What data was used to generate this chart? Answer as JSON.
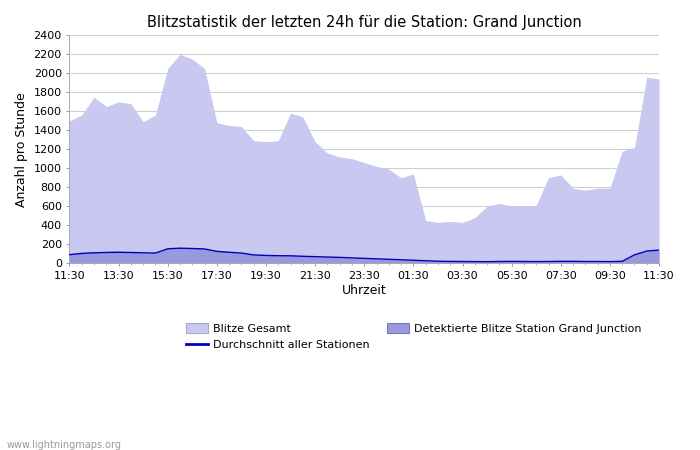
{
  "title": "Blitzstatistik der letzten 24h für die Station: Grand Junction",
  "xlabel": "Uhrzeit",
  "ylabel": "Anzahl pro Stunde",
  "ylim": [
    0,
    2400
  ],
  "yticks": [
    0,
    200,
    400,
    600,
    800,
    1000,
    1200,
    1400,
    1600,
    1800,
    2000,
    2200,
    2400
  ],
  "xtick_labels": [
    "11:30",
    "13:30",
    "15:30",
    "17:30",
    "19:30",
    "21:30",
    "23:30",
    "01:30",
    "03:30",
    "05:30",
    "07:30",
    "09:30",
    "11:30"
  ],
  "background_color": "#ffffff",
  "plot_bg_color": "#ffffff",
  "grid_color": "#cccccc",
  "footer_text": "www.lightningmaps.org",
  "color_gesamt": "#c8c8f0",
  "color_station": "#9999dd",
  "color_avg": "#0000bb",
  "gesamt": [
    1500,
    1560,
    1750,
    1650,
    1700,
    1680,
    1490,
    1560,
    2050,
    2200,
    2150,
    2050,
    1480,
    1450,
    1440,
    1290,
    1280,
    1290,
    1580,
    1540,
    1280,
    1160,
    1120,
    1100,
    1060,
    1020,
    990,
    900,
    940,
    450,
    430,
    440,
    430,
    480,
    600,
    630,
    600,
    600,
    610,
    900,
    930,
    790,
    770,
    790,
    790,
    1180,
    1220,
    1960,
    1940
  ],
  "station": [
    95,
    108,
    118,
    125,
    128,
    118,
    108,
    108,
    155,
    168,
    162,
    152,
    128,
    118,
    108,
    88,
    83,
    78,
    78,
    73,
    68,
    63,
    58,
    53,
    48,
    43,
    38,
    33,
    28,
    23,
    18,
    18,
    18,
    16,
    16,
    18,
    18,
    18,
    16,
    16,
    18,
    18,
    16,
    16,
    16,
    18,
    88,
    128,
    138
  ],
  "avg": [
    90,
    103,
    110,
    113,
    115,
    113,
    110,
    107,
    152,
    158,
    155,
    150,
    125,
    115,
    107,
    87,
    82,
    79,
    78,
    73,
    69,
    65,
    61,
    56,
    51,
    46,
    41,
    36,
    31,
    26,
    21,
    19,
    18,
    17,
    16,
    18,
    19,
    18,
    17,
    18,
    20,
    20,
    18,
    18,
    17,
    20,
    88,
    128,
    138
  ]
}
